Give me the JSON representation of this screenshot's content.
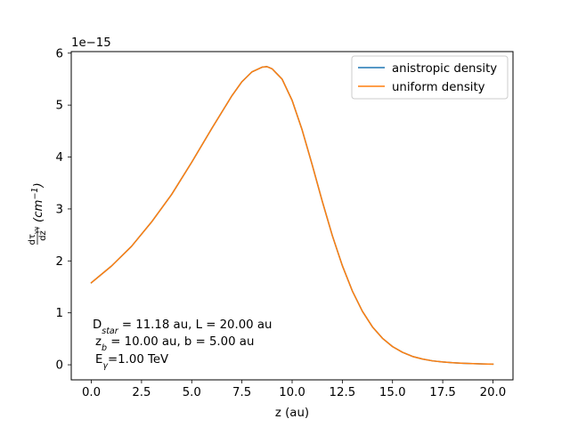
{
  "chart_data": {
    "type": "line",
    "xlabel": "z (au)",
    "ylabel": "dτγγ/dz (cm⁻¹)",
    "ylabel_frac_num": "dτ",
    "ylabel_frac_num_sub": "γγ",
    "ylabel_frac_den": "dz",
    "ylabel_unit_open": "(cm",
    "ylabel_unit_sup": "−1",
    "ylabel_unit_close": ")",
    "y_offset_text": "1e−15",
    "xlim": [
      -1.0,
      21.0
    ],
    "ylim": [
      -0.29,
      6.03
    ],
    "x_ticks": [
      0.0,
      2.5,
      5.0,
      7.5,
      10.0,
      12.5,
      15.0,
      17.5,
      20.0
    ],
    "x_tick_labels": [
      "0.0",
      "2.5",
      "5.0",
      "7.5",
      "10.0",
      "12.5",
      "15.0",
      "17.5",
      "20.0"
    ],
    "y_ticks": [
      0,
      1,
      2,
      3,
      4,
      5,
      6
    ],
    "y_tick_labels": [
      "0",
      "1",
      "2",
      "3",
      "4",
      "5",
      "6"
    ],
    "grid": false,
    "legend_position": "top-right",
    "series": [
      {
        "name": "anistropic density",
        "color": "#1f77b4",
        "x": [
          0.0,
          1.0,
          2.0,
          3.0,
          4.0,
          5.0,
          6.0,
          7.0,
          7.5,
          8.0,
          8.5,
          8.75,
          9.0,
          9.5,
          10.0,
          10.5,
          11.0,
          11.5,
          12.0,
          12.5,
          13.0,
          13.5,
          14.0,
          14.5,
          15.0,
          15.5,
          16.0,
          16.5,
          17.0,
          17.5,
          18.0,
          18.5,
          19.0,
          19.5,
          20.0
        ],
        "values": [
          1.58,
          1.9,
          2.28,
          2.75,
          3.28,
          3.9,
          4.55,
          5.18,
          5.45,
          5.64,
          5.73,
          5.74,
          5.7,
          5.5,
          5.09,
          4.52,
          3.85,
          3.15,
          2.49,
          1.91,
          1.42,
          1.03,
          0.73,
          0.51,
          0.35,
          0.24,
          0.16,
          0.11,
          0.075,
          0.055,
          0.04,
          0.03,
          0.022,
          0.016,
          0.012
        ]
      },
      {
        "name": "uniform density",
        "color": "#ff7f0e",
        "x": [
          0.0,
          1.0,
          2.0,
          3.0,
          4.0,
          5.0,
          6.0,
          7.0,
          7.5,
          8.0,
          8.5,
          8.75,
          9.0,
          9.5,
          10.0,
          10.5,
          11.0,
          11.5,
          12.0,
          12.5,
          13.0,
          13.5,
          14.0,
          14.5,
          15.0,
          15.5,
          16.0,
          16.5,
          17.0,
          17.5,
          18.0,
          18.5,
          19.0,
          19.5,
          20.0
        ],
        "values": [
          1.58,
          1.9,
          2.28,
          2.75,
          3.28,
          3.9,
          4.55,
          5.18,
          5.45,
          5.64,
          5.73,
          5.74,
          5.7,
          5.5,
          5.09,
          4.52,
          3.85,
          3.15,
          2.49,
          1.91,
          1.42,
          1.03,
          0.73,
          0.51,
          0.35,
          0.24,
          0.16,
          0.11,
          0.075,
          0.055,
          0.04,
          0.03,
          0.022,
          0.016,
          0.012
        ]
      }
    ],
    "annotation": {
      "line1_pre": "D",
      "line1_sub": "star",
      "line1_post": " = 11.18 au, L = 20.00 au",
      "line2_pre": "z",
      "line2_sub": "b",
      "line2_post": " = 10.00 au, b = 5.00 au",
      "line3_pre": "E",
      "line3_sub": "γ",
      "line3_post": "=1.00 TeV"
    }
  }
}
